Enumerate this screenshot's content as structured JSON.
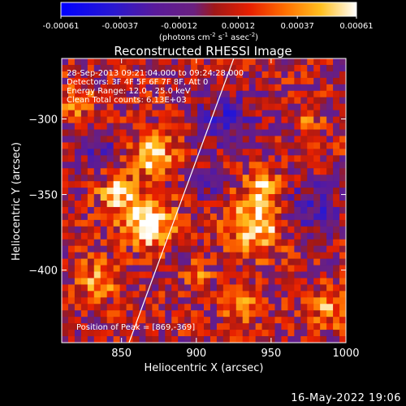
{
  "colorbar": {
    "ticks": [
      "-0.00061",
      "-0.00037",
      "-0.00012",
      "0.00012",
      "0.00037",
      "0.00061"
    ],
    "unit_main": "(photons cm",
    "unit_sup1": "-2",
    "unit_mid": " s",
    "unit_sup2": "-1",
    "unit_mid2": " asec",
    "unit_sup3": "-2",
    "unit_end": ")"
  },
  "annotations": {
    "time_range": "28-Sep-2013 09:21:04.000 to 09:24:28.000",
    "detectors": "Detectors: 3F 4F 5F 6F 7F 8F, Att 0",
    "energy": "Energy Range: 12.0 - 25.0 keV",
    "clean": "Clean     Total counts: 6.13E+03",
    "peak": "Position of Peak = [869,-369]"
  },
  "footer_date": "16-May-2022 19:06",
  "chart_data": {
    "type": "heatmap",
    "title": "Reconstructed RHESSI Image",
    "xlabel": "Heliocentric X (arcsec)",
    "ylabel": "Heliocentric Y (arcsec)",
    "xlim": [
      810,
      1000
    ],
    "ylim": [
      -448,
      -260
    ],
    "x_ticks": [
      850,
      900,
      950,
      1000
    ],
    "y_ticks": [
      -300,
      -350,
      -400
    ],
    "x_tick_labels": [
      "850",
      "900",
      "950",
      "1000"
    ],
    "y_tick_labels": [
      "−300",
      "−350",
      "−400"
    ],
    "colorbar_range": [
      -0.00061,
      0.00061
    ],
    "peak": [
      869,
      -369
    ],
    "limb_line": [
      [
        855,
        -448
      ],
      [
        925,
        -260
      ]
    ],
    "sources": [
      {
        "x": 869,
        "y": -369,
        "sigma": 11,
        "amp": 0.00061
      },
      {
        "x": 872,
        "y": -325,
        "sigma": 9,
        "amp": 0.00052
      },
      {
        "x": 848,
        "y": -350,
        "sigma": 9,
        "amp": 0.00045
      },
      {
        "x": 940,
        "y": -370,
        "sigma": 12,
        "amp": 0.00055
      },
      {
        "x": 945,
        "y": -345,
        "sigma": 8,
        "amp": 0.00042
      },
      {
        "x": 930,
        "y": -425,
        "sigma": 8,
        "amp": 0.00032
      },
      {
        "x": 835,
        "y": -405,
        "sigma": 9,
        "amp": 0.00033
      },
      {
        "x": 990,
        "y": -425,
        "sigma": 8,
        "amp": 0.00035
      },
      {
        "x": 820,
        "y": -290,
        "sigma": 7,
        "amp": 0.0003
      },
      {
        "x": 975,
        "y": -300,
        "sigma": 6,
        "amp": 0.00022
      },
      {
        "x": 900,
        "y": -405,
        "sigma": 6,
        "amp": 0.00028
      }
    ],
    "negative_sources": [
      {
        "x": 920,
        "y": -300,
        "sigma": 14,
        "amp": -0.0003
      },
      {
        "x": 975,
        "y": -360,
        "sigma": 14,
        "amp": -0.00028
      },
      {
        "x": 905,
        "y": -345,
        "sigma": 8,
        "amp": -0.0002
      },
      {
        "x": 835,
        "y": -320,
        "sigma": 9,
        "amp": -0.00022
      }
    ],
    "colormap": [
      [
        0.0,
        "#0000ff"
      ],
      [
        0.18,
        "#2a18d0"
      ],
      [
        0.32,
        "#5a1a9a"
      ],
      [
        0.45,
        "#6a2080"
      ],
      [
        0.52,
        "#a01818"
      ],
      [
        0.64,
        "#e82000"
      ],
      [
        0.76,
        "#ff7000"
      ],
      [
        0.88,
        "#ffc020"
      ],
      [
        1.0,
        "#ffffff"
      ]
    ]
  }
}
